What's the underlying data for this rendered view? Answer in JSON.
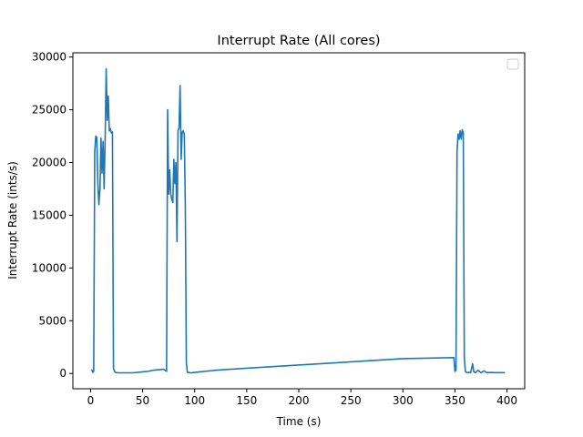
{
  "chart_data": {
    "type": "line",
    "title": "Interrupt Rate (All cores)",
    "xlabel": "Time (s)",
    "ylabel": "Interrupt Rate (ints/s)",
    "xlim": [
      -17,
      417
    ],
    "ylim": [
      -1450,
      30400
    ],
    "xticks": [
      0,
      50,
      100,
      150,
      200,
      250,
      300,
      350,
      400
    ],
    "yticks": [
      0,
      5000,
      10000,
      15000,
      20000,
      25000,
      30000
    ],
    "grid": false,
    "legend": {
      "placement": "top-right",
      "entries": []
    },
    "series": [
      {
        "name": "",
        "color": "#1f77b4",
        "x": [
          1,
          2,
          3,
          4,
          5,
          6,
          7,
          8,
          9,
          10,
          11,
          12,
          13,
          14,
          15,
          16,
          17,
          18,
          19,
          20,
          21,
          22,
          23,
          24,
          25,
          26,
          27,
          30,
          35,
          40,
          45,
          50,
          55,
          60,
          65,
          70,
          73,
          74,
          75,
          76,
          77,
          78,
          79,
          80,
          81,
          82,
          83,
          84,
          85,
          86,
          87,
          88,
          89,
          90,
          91,
          92,
          93,
          94,
          95,
          96,
          97,
          98,
          100,
          105,
          110,
          120,
          150,
          200,
          250,
          300,
          349,
          350,
          351,
          352,
          353,
          354,
          355,
          356,
          357,
          358,
          359,
          360,
          361,
          362,
          363,
          365,
          367,
          368,
          369,
          370,
          372,
          375,
          378,
          380,
          383,
          385,
          388,
          390,
          395,
          398
        ],
        "values": [
          400,
          100,
          200,
          21000,
          22500,
          22400,
          18000,
          16000,
          17500,
          22300,
          19000,
          22000,
          17500,
          22200,
          28900,
          24000,
          26300,
          23000,
          23200,
          22800,
          22900,
          500,
          200,
          100,
          80,
          70,
          60,
          60,
          60,
          60,
          100,
          150,
          200,
          300,
          350,
          400,
          200,
          25000,
          17000,
          19300,
          17000,
          16500,
          16200,
          20300,
          18000,
          20000,
          12500,
          23000,
          23300,
          27300,
          20300,
          22900,
          23000,
          22700,
          16000,
          1000,
          100,
          100,
          80,
          60,
          60,
          80,
          100,
          150,
          200,
          300,
          500,
          800,
          1100,
          1400,
          1500,
          200,
          300,
          21000,
          22700,
          22200,
          23000,
          22200,
          23100,
          22800,
          1500,
          200,
          100,
          80,
          100,
          80,
          900,
          200,
          100,
          80,
          300,
          80,
          250,
          100,
          80,
          100,
          80,
          80,
          80,
          80
        ]
      }
    ]
  }
}
